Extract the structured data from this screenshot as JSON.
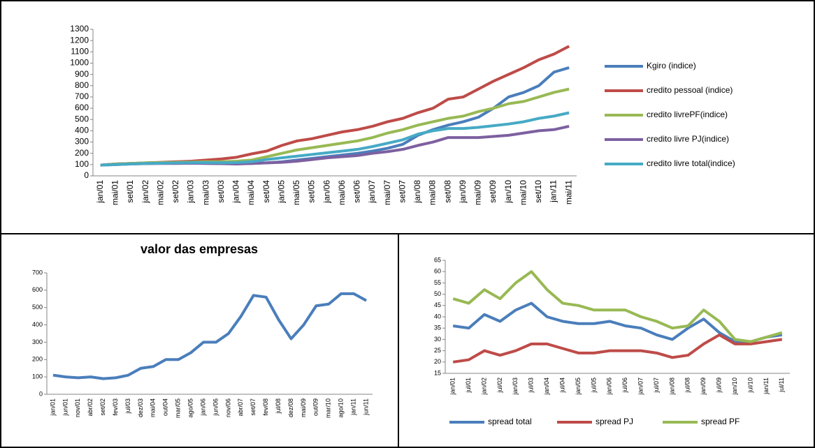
{
  "chart_data": [
    {
      "type": "line",
      "legend": "right",
      "categories": [
        "jan/01",
        "mai/01",
        "set/01",
        "jan/02",
        "mai/02",
        "set/02",
        "jan/03",
        "mai/03",
        "set/03",
        "jan/04",
        "mai/04",
        "set/04",
        "jan/05",
        "mai/05",
        "set/05",
        "jan/06",
        "mai/06",
        "set/06",
        "jan/07",
        "mai/07",
        "set/07",
        "jan/08",
        "mai/08",
        "set/08",
        "jan/09",
        "mai/09",
        "set/09",
        "jan/10",
        "mai/10",
        "set/10",
        "jan/11",
        "mai/11"
      ],
      "ylim": [
        0,
        1300
      ],
      "yticks": [
        0,
        100,
        200,
        300,
        400,
        500,
        600,
        700,
        800,
        900,
        1000,
        1100,
        1200,
        1300
      ],
      "series": [
        {
          "name": "Kgiro (indice)",
          "color": "#4a7ebb",
          "values": [
            95,
            105,
            110,
            110,
            112,
            115,
            115,
            112,
            108,
            108,
            110,
            115,
            125,
            140,
            155,
            170,
            185,
            200,
            220,
            245,
            280,
            360,
            410,
            450,
            480,
            520,
            600,
            700,
            740,
            800,
            920,
            960
          ]
        },
        {
          "name": "credito pessoal (indice)",
          "color": "#be4b48",
          "values": [
            95,
            105,
            110,
            115,
            120,
            125,
            130,
            140,
            150,
            165,
            195,
            220,
            270,
            310,
            330,
            360,
            390,
            410,
            440,
            480,
            510,
            560,
            600,
            680,
            700,
            770,
            840,
            900,
            960,
            1030,
            1080,
            1150
          ]
        },
        {
          "name": "credito livrePF(indice)",
          "color": "#98b954",
          "values": [
            95,
            105,
            110,
            115,
            118,
            120,
            122,
            125,
            125,
            130,
            140,
            170,
            200,
            230,
            250,
            270,
            290,
            310,
            340,
            380,
            410,
            450,
            480,
            510,
            530,
            570,
            600,
            640,
            660,
            700,
            740,
            770
          ]
        },
        {
          "name": "credito livre PJ(indice)",
          "color": "#7d60a0",
          "values": [
            95,
            100,
            105,
            108,
            110,
            110,
            112,
            110,
            108,
            105,
            110,
            115,
            120,
            130,
            145,
            160,
            170,
            180,
            200,
            215,
            235,
            270,
            300,
            340,
            340,
            340,
            350,
            360,
            380,
            400,
            410,
            440
          ]
        },
        {
          "name": "credito livre total(indice)",
          "color": "#46aac5",
          "values": [
            95,
            100,
            105,
            110,
            112,
            115,
            118,
            118,
            116,
            118,
            125,
            145,
            160,
            175,
            190,
            205,
            220,
            235,
            260,
            290,
            320,
            370,
            400,
            420,
            420,
            430,
            445,
            460,
            480,
            510,
            530,
            560
          ]
        }
      ]
    },
    {
      "type": "line",
      "title": "valor das empresas",
      "categories": [
        "jan/01",
        "jun/01",
        "nov/01",
        "abr/02",
        "set/02",
        "fev/03",
        "jul/03",
        "dez/03",
        "mai/04",
        "out/04",
        "mar/05",
        "ago/05",
        "jan/06",
        "jun/06",
        "nov/06",
        "abr/07",
        "set/07",
        "fev/08",
        "jul/08",
        "dez/08",
        "mai/09",
        "out/09",
        "mar/10",
        "ago/10",
        "jan/11",
        "jun/11"
      ],
      "ylim": [
        0,
        700
      ],
      "yticks": [
        0,
        100,
        200,
        300,
        400,
        500,
        600,
        700
      ],
      "series": [
        {
          "name": "valor das empresas",
          "color": "#4a7ebb",
          "values": [
            110,
            100,
            95,
            100,
            90,
            95,
            110,
            150,
            160,
            200,
            200,
            240,
            300,
            300,
            350,
            450,
            570,
            560,
            430,
            320,
            400,
            510,
            520,
            580,
            580,
            540
          ]
        }
      ]
    },
    {
      "type": "line",
      "legend": "bottom",
      "categories": [
        "jan/01",
        "jul/01",
        "jan/02",
        "jul/02",
        "jan/03",
        "jul/03",
        "jan/04",
        "jul/04",
        "jan/05",
        "jul/05",
        "jan/06",
        "jul/06",
        "jan/07",
        "jul/07",
        "jan/08",
        "jul/08",
        "jan/09",
        "jul/09",
        "jan/10",
        "jul/10",
        "jan/11",
        "jul/11"
      ],
      "ylim": [
        15,
        65
      ],
      "yticks": [
        15,
        20,
        25,
        30,
        35,
        40,
        45,
        50,
        55,
        60,
        65
      ],
      "series": [
        {
          "name": "spread total",
          "color": "#4a7ebb",
          "values": [
            36,
            35,
            41,
            38,
            43,
            46,
            40,
            38,
            37,
            37,
            38,
            36,
            35,
            32,
            30,
            35,
            39,
            33,
            29,
            29,
            31,
            32
          ]
        },
        {
          "name": "spread PJ",
          "color": "#be4b48",
          "values": [
            20,
            21,
            25,
            23,
            25,
            28,
            28,
            26,
            24,
            24,
            25,
            25,
            25,
            24,
            22,
            23,
            28,
            32,
            28,
            28,
            29,
            30
          ]
        },
        {
          "name": "spread PF",
          "color": "#98b954",
          "values": [
            48,
            46,
            52,
            48,
            55,
            60,
            52,
            46,
            45,
            43,
            43,
            43,
            40,
            38,
            35,
            36,
            43,
            38,
            30,
            29,
            31,
            33
          ]
        }
      ]
    }
  ]
}
